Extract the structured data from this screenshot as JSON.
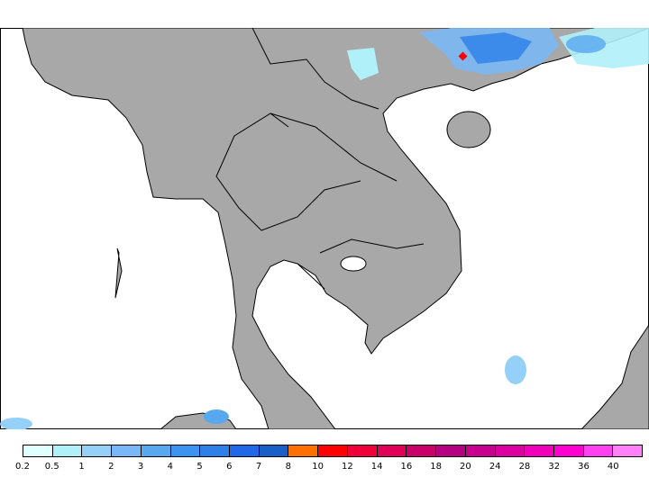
{
  "map": {
    "land_color": "#a8a8a8",
    "water_color": "#ffffff",
    "marker_color": "#ff0000",
    "marker_icon": "red-diamond-marker"
  },
  "legend": {
    "labels": [
      "0.2",
      "0.5",
      "1",
      "2",
      "3",
      "4",
      "5",
      "6",
      "7",
      "8",
      "10",
      "12",
      "14",
      "16",
      "18",
      "20",
      "24",
      "28",
      "32",
      "36",
      "40"
    ],
    "colors": [
      "#e0ffff",
      "#b0f0f8",
      "#94d0f8",
      "#78b8f8",
      "#58a8f0",
      "#3c94f0",
      "#2c80e8",
      "#2068e8",
      "#1860c8",
      "#ff7000",
      "#ff0000",
      "#f00038",
      "#e00058",
      "#c80068",
      "#b40080",
      "#c80090",
      "#dc00a0",
      "#f000b8",
      "#ff00d0",
      "#ff40f0",
      "#ff80f8"
    ]
  }
}
